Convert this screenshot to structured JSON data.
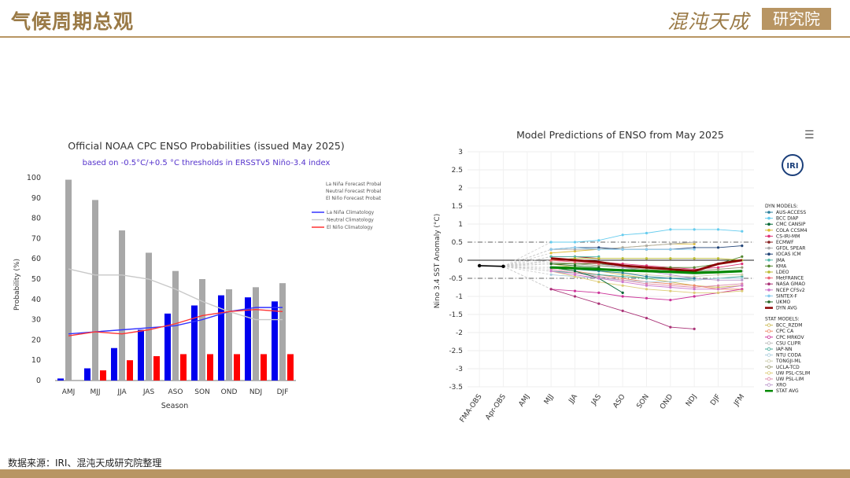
{
  "header": {
    "title": "气候周期总观",
    "brand": "混沌天成",
    "brand_box": "研究院"
  },
  "footer": {
    "source": "数据来源：IRI、混沌天成研究院整理"
  },
  "colors": {
    "gold": "#b89563",
    "lanina": "#0000ee",
    "elnino": "#ff0000",
    "neutral": "#a8a8a8",
    "dynavg": "#8b0000",
    "statavg": "#008800"
  },
  "chart_data": [
    {
      "type": "bar",
      "title": "Official NOAA CPC ENSO Probabilities (issued May 2025)",
      "subtitle": "based on -0.5°C/+0.5 °C thresholds in ERSSTv5 Niño-3.4 index",
      "xlabel": "Season",
      "ylabel": "Probability (%)",
      "ylim": [
        0,
        100
      ],
      "yticks": [
        0,
        10,
        20,
        30,
        40,
        50,
        60,
        70,
        80,
        90,
        100
      ],
      "categories": [
        "AMJ",
        "MJJ",
        "JJA",
        "JAS",
        "ASO",
        "SON",
        "OND",
        "NDJ",
        "DJF"
      ],
      "series": [
        {
          "name": "La Niña Forecast Probability",
          "color": "#0000ee",
          "values": [
            1,
            6,
            16,
            25,
            33,
            37,
            42,
            41,
            39
          ]
        },
        {
          "name": "Neutral Forecast Probability",
          "color": "#a8a8a8",
          "values": [
            99,
            89,
            74,
            63,
            54,
            50,
            45,
            46,
            48
          ]
        },
        {
          "name": "El Niño Forecast Probability",
          "color": "#ff0000",
          "values": [
            0,
            5,
            10,
            12,
            13,
            13,
            13,
            13,
            13
          ]
        }
      ],
      "climatology": [
        {
          "name": "La Niña Climatology",
          "color": "#3333ff",
          "values": [
            23,
            24,
            25,
            26,
            27,
            30,
            34,
            36,
            36
          ]
        },
        {
          "name": "Neutral Climatology",
          "color": "#c8c8c8",
          "values": [
            55,
            52,
            52,
            50,
            45,
            39,
            34,
            30,
            30
          ]
        },
        {
          "name": "El Niño Climatology",
          "color": "#ff3333",
          "values": [
            22,
            24,
            23,
            25,
            28,
            32,
            34,
            35,
            34
          ]
        }
      ]
    },
    {
      "type": "line",
      "title": "Model Predictions of ENSO from May 2025",
      "ylabel": "Nino 3.4 SST Anomaly (°C)",
      "ylim": [
        -3.5,
        3
      ],
      "yticks": [
        "3",
        "2.5",
        "2",
        "1.5",
        "1",
        "0.5",
        "0",
        "-0.5",
        "-1",
        "-1.5",
        "-2",
        "-2.5",
        "-3",
        "-3.5"
      ],
      "categories": [
        "FMA-OBS",
        "Apr-OBS",
        "AMJ",
        "MJJ",
        "JJA",
        "JAS",
        "ASO",
        "SON",
        "OND",
        "NDJ",
        "DJF",
        "JFM"
      ],
      "observed": [
        -0.15,
        -0.17
      ],
      "dyn_header": "DYN MODELS:",
      "stat_header": "STAT MODELS:",
      "dyn_models": [
        {
          "name": "AUS-ACCESS",
          "color": "#2a7f9c",
          "values": [
            -0.2,
            -0.25,
            -0.3,
            -0.35,
            -0.45,
            -0.5,
            -0.5,
            null,
            null
          ]
        },
        {
          "name": "BCC DIAP",
          "color": "#66ccee",
          "values": [
            0.5,
            0.5,
            0.55,
            0.7,
            0.75,
            0.85,
            0.85,
            0.85,
            0.8
          ]
        },
        {
          "name": "CMC CANSIP",
          "color": "#006633",
          "values": [
            -0.2,
            -0.3,
            -0.5,
            -0.9,
            null,
            null,
            null,
            null,
            null
          ]
        },
        {
          "name": "COLA CCSM4",
          "color": "#ddbb33",
          "values": [
            0.2,
            0.25,
            0.3,
            0.35,
            0.4,
            0.45,
            0.45,
            null,
            null
          ]
        },
        {
          "name": "CS-IRI-MM",
          "color": "#dd3377",
          "values": [
            0.0,
            0.0,
            -0.05,
            -0.1,
            -0.15,
            -0.2,
            -0.25,
            -0.2,
            -0.1
          ]
        },
        {
          "name": "ECMWF",
          "color": "#882222",
          "values": [
            0.1,
            0.1,
            0.05,
            null,
            null,
            null,
            null,
            null,
            null
          ]
        },
        {
          "name": "GFDL SPEAR",
          "color": "#aaaaaa",
          "values": [
            0.3,
            0.3,
            0.3,
            0.35,
            0.4,
            0.45,
            0.5,
            null,
            null
          ]
        },
        {
          "name": "IOCAS ICM",
          "color": "#224477",
          "values": [
            0.3,
            0.35,
            0.35,
            0.3,
            0.3,
            0.3,
            0.35,
            0.35,
            0.4
          ]
        },
        {
          "name": "JMA",
          "color": "#55bbaa",
          "values": [
            0.1,
            0.1,
            0.1,
            null,
            null,
            null,
            null,
            null,
            null
          ]
        },
        {
          "name": "KMA",
          "color": "#558833",
          "values": [
            -0.1,
            -0.1,
            -0.1,
            -0.15,
            -0.2,
            -0.2,
            -0.2,
            -0.1,
            0.1
          ]
        },
        {
          "name": "LDEO",
          "color": "#bbbb33",
          "values": [
            0.0,
            0.05,
            0.05,
            0.05,
            0.05,
            0.05,
            0.05,
            0.05,
            0.0
          ]
        },
        {
          "name": "MetFRANCE",
          "color": "#ee6677",
          "values": [
            0.0,
            -0.05,
            -0.1,
            null,
            null,
            null,
            null,
            null,
            null
          ]
        },
        {
          "name": "NASA GMAO",
          "color": "#aa3377",
          "values": [
            -0.8,
            -1.0,
            -1.2,
            -1.4,
            -1.6,
            -1.85,
            -1.9,
            null,
            null
          ]
        },
        {
          "name": "NCEP CFSv2",
          "color": "#cc77cc",
          "values": [
            -0.3,
            -0.4,
            -0.5,
            -0.6,
            -0.7,
            -0.75,
            -0.8,
            -0.8,
            -0.7
          ]
        },
        {
          "name": "SINTEX-F",
          "color": "#88ccee",
          "values": [
            0.3,
            0.35,
            0.3,
            0.3,
            0.3,
            0.3,
            0.3,
            null,
            null
          ]
        },
        {
          "name": "UKMO",
          "color": "#226622",
          "values": [
            -0.1,
            -0.15,
            -0.2,
            null,
            null,
            null,
            null,
            null,
            null
          ]
        }
      ],
      "dyn_avg": {
        "name": "DYN AVG",
        "color": "#8b0000",
        "values": [
          0.05,
          0.0,
          -0.05,
          -0.15,
          -0.2,
          -0.25,
          -0.3,
          -0.1,
          0.0
        ]
      },
      "stat_models": [
        {
          "name": "BCC_RZDM",
          "color": "#ccbb55",
          "values": [
            -0.1,
            -0.2,
            -0.3,
            -0.4,
            -0.5,
            -0.6,
            -0.7,
            -0.75,
            -0.7
          ]
        },
        {
          "name": "CPC CA",
          "color": "#ee8866",
          "values": [
            -0.2,
            -0.3,
            -0.4,
            -0.5,
            -0.6,
            -0.65,
            -0.7,
            -0.8,
            -0.8
          ]
        },
        {
          "name": "CPC MRKOV",
          "color": "#cc3399",
          "values": [
            -0.8,
            -0.85,
            -0.9,
            -1.0,
            -1.05,
            -1.1,
            -1.0,
            -0.9,
            -0.8
          ]
        },
        {
          "name": "CSU CLIPR",
          "color": "#bbbbbb",
          "values": [
            -0.1,
            -0.1,
            -0.15,
            -0.2,
            -0.2,
            -0.25,
            -0.3,
            -0.3,
            -0.3
          ]
        },
        {
          "name": "IAP-NN",
          "color": "#44aa99",
          "values": [
            -0.3,
            -0.35,
            -0.4,
            -0.45,
            -0.5,
            -0.5,
            -0.55,
            -0.5,
            -0.45
          ]
        },
        {
          "name": "NTU CODA",
          "color": "#aaccdd",
          "values": [
            -0.4,
            -0.45,
            -0.5,
            -0.55,
            -0.6,
            -0.6,
            -0.55,
            -0.5,
            -0.5
          ]
        },
        {
          "name": "TONGJI-ML",
          "color": "#ccccaa",
          "values": [
            -0.2,
            -0.25,
            -0.3,
            -0.35,
            -0.4,
            -0.45,
            -0.45,
            -0.4,
            -0.4
          ]
        },
        {
          "name": "UCLA-TCD",
          "color": "#999977",
          "values": [
            -0.05,
            -0.1,
            -0.15,
            -0.2,
            -0.25,
            -0.3,
            -0.3,
            -0.25,
            -0.2
          ]
        },
        {
          "name": "UW PSL-CSLIM",
          "color": "#ddcc77",
          "values": [
            -0.3,
            -0.45,
            -0.6,
            -0.7,
            -0.8,
            -0.85,
            -0.9,
            -0.9,
            -0.85
          ]
        },
        {
          "name": "UW PSL-LIM",
          "color": "#dd88aa",
          "values": [
            -0.25,
            -0.35,
            -0.45,
            -0.55,
            -0.65,
            -0.7,
            -0.75,
            -0.7,
            -0.65
          ]
        },
        {
          "name": "XRO",
          "color": "#bb99cc",
          "values": [
            0.0,
            -0.05,
            -0.1,
            -0.2,
            -0.3,
            -0.4,
            -0.5,
            -0.55,
            -0.55
          ]
        }
      ],
      "stat_avg": {
        "name": "STAT AVG",
        "color": "#008800",
        "values": [
          -0.2,
          -0.22,
          -0.25,
          -0.28,
          -0.3,
          -0.32,
          -0.35,
          -0.33,
          -0.3
        ]
      }
    }
  ]
}
